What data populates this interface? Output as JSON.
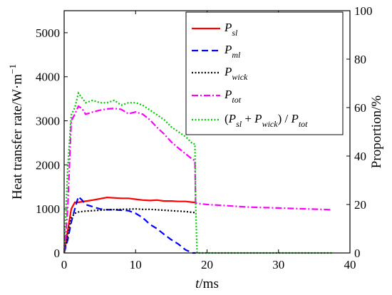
{
  "chart_data": {
    "type": "line",
    "xlabel": {
      "italic": "t",
      "rest": "/ms"
    },
    "ylabel_left": "Heat transfer rate/W·m",
    "ylabel_left_sup": "−1",
    "ylabel_right": "Proportion/%",
    "xlim": [
      0,
      40
    ],
    "ylim_left": [
      0,
      5500
    ],
    "ylim_right": [
      0,
      100
    ],
    "x_ticks": [
      "0",
      "10",
      "20",
      "30",
      "40"
    ],
    "y_left_ticks": [
      "0",
      "1000",
      "2000",
      "3000",
      "4000",
      "5000"
    ],
    "y_right_ticks": [
      "0",
      "20",
      "40",
      "60",
      "80",
      "100"
    ],
    "grid": false,
    "legend_position": "top-right",
    "series": [
      {
        "name": "P_sl",
        "legend": {
          "main": "P",
          "sub": "sl"
        },
        "axis": "left",
        "color": "#ff0000",
        "dash": "solid",
        "points": [
          [
            0,
            0
          ],
          [
            0.5,
            500
          ],
          [
            1,
            1000
          ],
          [
            1.5,
            1150
          ],
          [
            2,
            1150
          ],
          [
            3,
            1175
          ],
          [
            4,
            1200
          ],
          [
            5,
            1230
          ],
          [
            6,
            1260
          ],
          [
            7,
            1250
          ],
          [
            8,
            1240
          ],
          [
            9,
            1240
          ],
          [
            10,
            1220
          ],
          [
            11,
            1200
          ],
          [
            12,
            1190
          ],
          [
            13,
            1200
          ],
          [
            14,
            1180
          ],
          [
            15,
            1180
          ],
          [
            16,
            1170
          ],
          [
            17,
            1170
          ],
          [
            18,
            1150
          ],
          [
            18.4,
            1150
          ]
        ]
      },
      {
        "name": "P_ml",
        "legend": {
          "main": "P",
          "sub": "ml"
        },
        "axis": "left",
        "color": "#0000ff",
        "dash": "dashed",
        "points": [
          [
            0,
            0
          ],
          [
            0.5,
            300
          ],
          [
            1,
            700
          ],
          [
            1.5,
            1000
          ],
          [
            2,
            1280
          ],
          [
            2.5,
            1200
          ],
          [
            3,
            1100
          ],
          [
            4,
            1050
          ],
          [
            5,
            1000
          ],
          [
            6,
            980
          ],
          [
            7,
            980
          ],
          [
            8,
            970
          ],
          [
            9,
            960
          ],
          [
            10,
            900
          ],
          [
            11,
            800
          ],
          [
            12,
            650
          ],
          [
            13,
            550
          ],
          [
            14,
            420
          ],
          [
            15,
            300
          ],
          [
            16,
            200
          ],
          [
            17,
            70
          ],
          [
            18,
            0
          ],
          [
            18.4,
            0
          ]
        ]
      },
      {
        "name": "P_wick",
        "legend": {
          "main": "P",
          "sub": "wick"
        },
        "axis": "left",
        "color": "#000000",
        "dash": "dotted",
        "points": [
          [
            0,
            0
          ],
          [
            0.5,
            400
          ],
          [
            1,
            800
          ],
          [
            1.5,
            900
          ],
          [
            2,
            930
          ],
          [
            3,
            950
          ],
          [
            4,
            960
          ],
          [
            5,
            970
          ],
          [
            6,
            980
          ],
          [
            7,
            985
          ],
          [
            8,
            990
          ],
          [
            9,
            995
          ],
          [
            10,
            1000
          ],
          [
            11,
            990
          ],
          [
            12,
            990
          ],
          [
            13,
            980
          ],
          [
            14,
            970
          ],
          [
            15,
            960
          ],
          [
            16,
            950
          ],
          [
            17,
            940
          ],
          [
            18,
            920
          ],
          [
            18.4,
            920
          ]
        ]
      },
      {
        "name": "P_tot",
        "legend": {
          "main": "P",
          "sub": "tot"
        },
        "axis": "left",
        "color": "#ff00ff",
        "dash": "dashdot",
        "points": [
          [
            0,
            0
          ],
          [
            0.5,
            1000
          ],
          [
            1,
            3000
          ],
          [
            1.5,
            3150
          ],
          [
            2,
            3330
          ],
          [
            2.5,
            3280
          ],
          [
            3,
            3150
          ],
          [
            4,
            3200
          ],
          [
            5,
            3240
          ],
          [
            6,
            3270
          ],
          [
            7,
            3280
          ],
          [
            8,
            3260
          ],
          [
            9,
            3160
          ],
          [
            10,
            3200
          ],
          [
            11,
            3150
          ],
          [
            12,
            3020
          ],
          [
            13,
            2850
          ],
          [
            14,
            2700
          ],
          [
            15,
            2520
          ],
          [
            16,
            2380
          ],
          [
            17,
            2250
          ],
          [
            18,
            2120
          ],
          [
            18.3,
            2100
          ],
          [
            18.4,
            1130
          ],
          [
            19,
            1120
          ],
          [
            20,
            1100
          ],
          [
            22,
            1080
          ],
          [
            24,
            1060
          ],
          [
            26,
            1040
          ],
          [
            28,
            1030
          ],
          [
            30,
            1020
          ],
          [
            32,
            1010
          ],
          [
            34,
            1000
          ],
          [
            36,
            990
          ],
          [
            37.5,
            980
          ]
        ]
      },
      {
        "name": "(P_sl + P_wick) / P_tot",
        "legend": {
          "pre": "(",
          "p1": "P",
          "s1": "sl",
          "mid": " + ",
          "p2": "P",
          "s2": "wick",
          "close": ") / ",
          "p3": "P",
          "s3": "tot"
        },
        "axis": "right",
        "color": "#00cc00",
        "dash": "dotted",
        "points": [
          [
            0,
            0
          ],
          [
            0.5,
            35
          ],
          [
            1,
            57
          ],
          [
            1.5,
            60
          ],
          [
            2,
            66
          ],
          [
            2.5,
            64
          ],
          [
            3,
            62
          ],
          [
            4,
            63
          ],
          [
            5,
            62
          ],
          [
            6,
            62
          ],
          [
            7,
            63
          ],
          [
            8,
            61
          ],
          [
            9,
            62
          ],
          [
            10,
            62
          ],
          [
            11,
            61
          ],
          [
            12,
            59
          ],
          [
            13,
            57
          ],
          [
            14,
            55
          ],
          [
            15,
            52
          ],
          [
            16,
            50
          ],
          [
            17,
            48
          ],
          [
            18,
            45
          ],
          [
            18.3,
            45
          ],
          [
            18.4,
            20
          ],
          [
            18.6,
            0
          ],
          [
            20,
            0
          ],
          [
            25,
            0
          ],
          [
            30,
            0
          ],
          [
            35,
            0
          ],
          [
            37.5,
            0
          ]
        ]
      }
    ]
  }
}
